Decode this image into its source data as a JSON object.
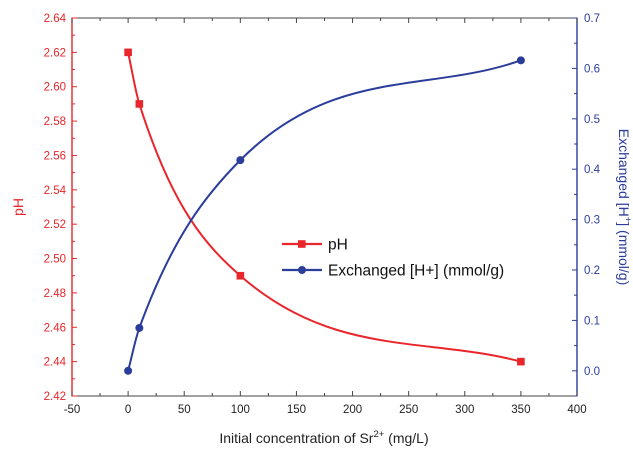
{
  "chart_data": {
    "type": "line",
    "xlabel": {
      "main": "Initial concentration of Sr",
      "sup": "2+",
      "unit": " (mg/L)"
    },
    "ylabel_left": "pH",
    "ylabel_right": {
      "main": "Exchanged [H",
      "sup": "+",
      "unit": "] (mmol/g)"
    },
    "xlim": [
      -50,
      400
    ],
    "ylim_left": [
      2.42,
      2.64
    ],
    "ylim_right": [
      -0.05,
      0.7
    ],
    "x_ticks": [
      "-50",
      "0",
      "50",
      "100",
      "150",
      "200",
      "250",
      "300",
      "350",
      "400"
    ],
    "yl_ticks": [
      "2.42",
      "2.44",
      "2.46",
      "2.48",
      "2.50",
      "2.52",
      "2.54",
      "2.56",
      "2.58",
      "2.60",
      "2.62",
      "2.64"
    ],
    "yr_ticks": [
      "0.0",
      "0.1",
      "0.2",
      "0.3",
      "0.4",
      "0.5",
      "0.6",
      "0.7"
    ],
    "legend_position": "center",
    "series": [
      {
        "name": "pH",
        "axis": "left",
        "marker": "square",
        "color": "#e8262b",
        "x": [
          0,
          10,
          100,
          350
        ],
        "y": [
          2.62,
          2.59,
          2.49,
          2.44
        ]
      },
      {
        "name": "Exchanged [H+] (mmol/g)",
        "axis": "right",
        "marker": "circle",
        "color": "#2b3d9b",
        "x": [
          0,
          10,
          100,
          350
        ],
        "y": [
          0.0,
          0.085,
          0.418,
          0.616
        ]
      }
    ]
  }
}
